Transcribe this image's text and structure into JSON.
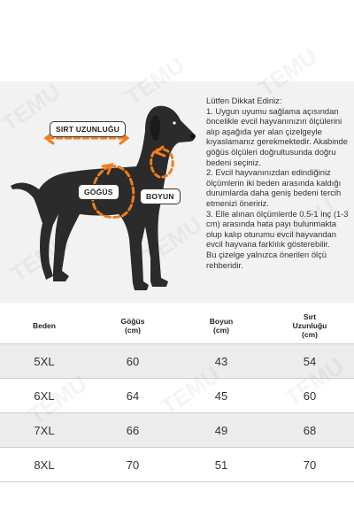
{
  "colors": {
    "accent": "#f07d1e",
    "dog": "#2b2b2b",
    "panel": "#f2f2f2"
  },
  "diagram": {
    "label_back": "SIRT UZUNLUĞU",
    "label_chest": "GÖĞÜS",
    "label_neck": "BOYUN"
  },
  "notes": {
    "title": "Lütfen Dikkat Ediniz:",
    "items": [
      "1. Uygun uyumu sağlama açısından öncelikle evcil hayvanınızın ölçülerini alıp aşağıda yer alan çizelgeyle kıyaslamanız gerekmektedir. Akabinde göğüs ölçüleri doğrultusunda doğru bedeni seçiniz.",
      "2. Evcil hayvanınızdan edindiğiniz ölçümlerin iki beden arasında kaldığı durumlarda daha geniş bedeni tercih etmenizi öneririz.",
      "3. Elle alınan ölçümlerde 0.5-1 inç (1-3 cm) arasında hata payı bulunmakta olup kalıp oturumu evcil hayvandan evcil hayvana farklılık gösterebilir.",
      "Bu çizelge yalnızca önerilen ölçü rehberidir."
    ]
  },
  "table": {
    "headers": [
      "Beden",
      "Göğüs\n(cm)",
      "Boyun\n(cm)",
      "Sırt\nUzunluğu\n(cm)"
    ],
    "rows": [
      [
        "5XL",
        "60",
        "43",
        "54"
      ],
      [
        "6XL",
        "64",
        "45",
        "60"
      ],
      [
        "7XL",
        "66",
        "49",
        "68"
      ],
      [
        "8XL",
        "70",
        "51",
        "70"
      ]
    ]
  },
  "watermark": {
    "text": "TEMU"
  }
}
